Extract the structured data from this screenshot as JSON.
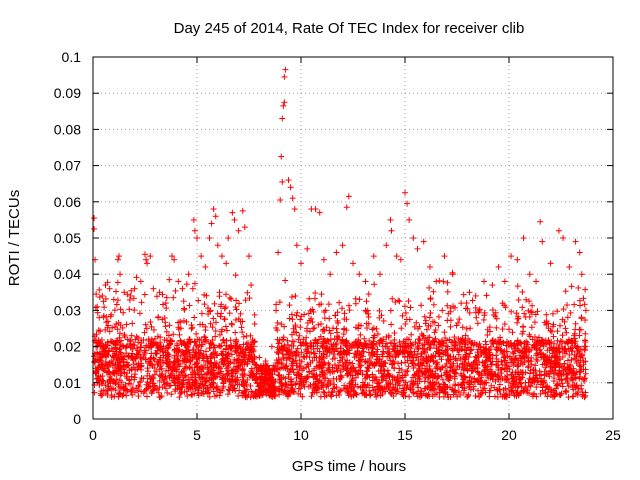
{
  "chart_data": {
    "type": "scatter",
    "title": "Day 245 of 2014, Rate Of TEC Index for receiver clib",
    "xlabel": "GPS time / hours",
    "ylabel": "ROTI / TECUs",
    "xlim": [
      0,
      25
    ],
    "ylim": [
      0,
      0.1
    ],
    "x_ticks": [
      0,
      5,
      10,
      15,
      20,
      25
    ],
    "x_tick_labels": [
      "0",
      "5",
      "10",
      "15",
      "20",
      "25"
    ],
    "y_ticks": [
      0,
      0.01,
      0.02,
      0.03,
      0.04,
      0.05,
      0.06,
      0.07,
      0.08,
      0.09,
      0.1
    ],
    "y_tick_labels": [
      "0",
      "0.01",
      "0.02",
      "0.03",
      "0.04",
      "0.05",
      "0.06",
      "0.07",
      "0.08",
      "0.09",
      "0.1"
    ],
    "grid": true,
    "marker": "+",
    "marker_color": "#ff0000",
    "series": [
      {
        "name": "ROTI",
        "points": [
          [
            0.05,
            0.0555
          ],
          [
            0.05,
            0.0525
          ],
          [
            0.1,
            0.044
          ],
          [
            0.15,
            0.0345
          ],
          [
            0.2,
            0.031
          ],
          [
            0.3,
            0.028
          ],
          [
            0.45,
            0.034
          ],
          [
            0.6,
            0.037
          ],
          [
            0.8,
            0.036
          ],
          [
            1.0,
            0.033
          ],
          [
            1.2,
            0.044
          ],
          [
            1.25,
            0.045
          ],
          [
            1.3,
            0.04
          ],
          [
            1.5,
            0.035
          ],
          [
            1.8,
            0.034
          ],
          [
            2.0,
            0.036
          ],
          [
            2.3,
            0.038
          ],
          [
            2.5,
            0.0455
          ],
          [
            2.55,
            0.044
          ],
          [
            2.6,
            0.043
          ],
          [
            2.75,
            0.045
          ],
          [
            2.9,
            0.036
          ],
          [
            3.2,
            0.035
          ],
          [
            3.5,
            0.032
          ],
          [
            3.8,
            0.045
          ],
          [
            3.9,
            0.044
          ],
          [
            4.1,
            0.038
          ],
          [
            4.3,
            0.036
          ],
          [
            4.6,
            0.04
          ],
          [
            4.8,
            0.036
          ],
          [
            4.85,
            0.055
          ],
          [
            4.9,
            0.052
          ],
          [
            5.0,
            0.05
          ],
          [
            5.2,
            0.045
          ],
          [
            5.4,
            0.042
          ],
          [
            5.6,
            0.05
          ],
          [
            5.7,
            0.054
          ],
          [
            5.8,
            0.058
          ],
          [
            5.9,
            0.056
          ],
          [
            6.0,
            0.048
          ],
          [
            6.2,
            0.045
          ],
          [
            6.4,
            0.043
          ],
          [
            6.5,
            0.05
          ],
          [
            6.7,
            0.057
          ],
          [
            6.8,
            0.055
          ],
          [
            7.0,
            0.052
          ],
          [
            7.2,
            0.0575
          ],
          [
            7.3,
            0.053
          ],
          [
            7.5,
            0.045
          ],
          [
            7.6,
            0.037
          ],
          [
            8.0,
            0.017
          ],
          [
            8.3,
            0.016
          ],
          [
            8.6,
            0.02
          ],
          [
            8.8,
            0.03
          ],
          [
            8.9,
            0.046
          ],
          [
            9.0,
            0.0605
          ],
          [
            9.1,
            0.0655
          ],
          [
            9.05,
            0.0725
          ],
          [
            9.1,
            0.083
          ],
          [
            9.15,
            0.0865
          ],
          [
            9.2,
            0.0875
          ],
          [
            9.2,
            0.0945
          ],
          [
            9.25,
            0.0965
          ],
          [
            9.4,
            0.066
          ],
          [
            9.5,
            0.064
          ],
          [
            9.6,
            0.061
          ],
          [
            9.7,
            0.058
          ],
          [
            9.8,
            0.048
          ],
          [
            10.0,
            0.043
          ],
          [
            10.3,
            0.047
          ],
          [
            10.5,
            0.058
          ],
          [
            10.7,
            0.058
          ],
          [
            10.9,
            0.057
          ],
          [
            11.1,
            0.044
          ],
          [
            11.4,
            0.04
          ],
          [
            11.7,
            0.046
          ],
          [
            12.0,
            0.048
          ],
          [
            12.2,
            0.0585
          ],
          [
            12.3,
            0.0615
          ],
          [
            12.5,
            0.043
          ],
          [
            12.8,
            0.04
          ],
          [
            13.1,
            0.038
          ],
          [
            13.5,
            0.045
          ],
          [
            13.8,
            0.04
          ],
          [
            14.1,
            0.048
          ],
          [
            14.3,
            0.055
          ],
          [
            14.35,
            0.052
          ],
          [
            14.6,
            0.045
          ],
          [
            14.8,
            0.044
          ],
          [
            15.0,
            0.0625
          ],
          [
            15.1,
            0.0595
          ],
          [
            15.2,
            0.055
          ],
          [
            15.4,
            0.05
          ],
          [
            15.6,
            0.047
          ],
          [
            15.9,
            0.049
          ],
          [
            16.2,
            0.042
          ],
          [
            16.5,
            0.038
          ],
          [
            16.9,
            0.045
          ],
          [
            17.3,
            0.04
          ],
          [
            17.7,
            0.032
          ],
          [
            18.1,
            0.035
          ],
          [
            18.4,
            0.034
          ],
          [
            18.8,
            0.038
          ],
          [
            19.2,
            0.037
          ],
          [
            19.5,
            0.042
          ],
          [
            19.8,
            0.038
          ],
          [
            20.1,
            0.045
          ],
          [
            20.4,
            0.044
          ],
          [
            20.7,
            0.05
          ],
          [
            21.0,
            0.04
          ],
          [
            21.3,
            0.038
          ],
          [
            21.5,
            0.0545
          ],
          [
            21.6,
            0.049
          ],
          [
            22.0,
            0.043
          ],
          [
            22.4,
            0.052
          ],
          [
            22.6,
            0.05
          ],
          [
            22.9,
            0.042
          ],
          [
            23.2,
            0.049
          ],
          [
            23.4,
            0.046
          ],
          [
            23.5,
            0.04
          ],
          [
            23.7,
            0.03
          ]
        ],
        "dense_band": {
          "x_range": [
            0.05,
            23.7
          ],
          "y_min": 0.003,
          "y_typical": [
            0.006,
            0.022
          ],
          "note": "dense scatter of points throughout the day"
        }
      }
    ]
  }
}
